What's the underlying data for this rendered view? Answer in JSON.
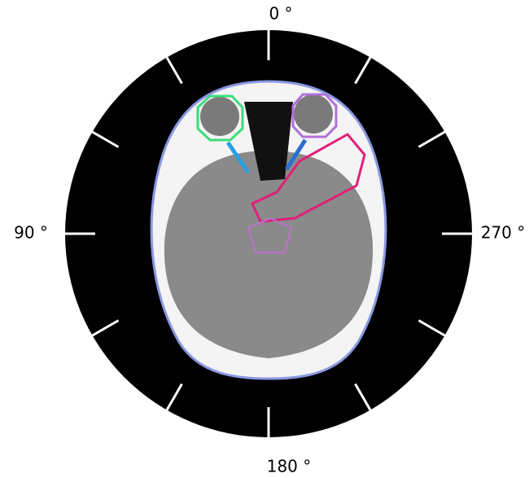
{
  "angle_labels": {
    "top": "0 °",
    "left": "90 °",
    "right": "270 °",
    "bottom": "180 °"
  }
}
